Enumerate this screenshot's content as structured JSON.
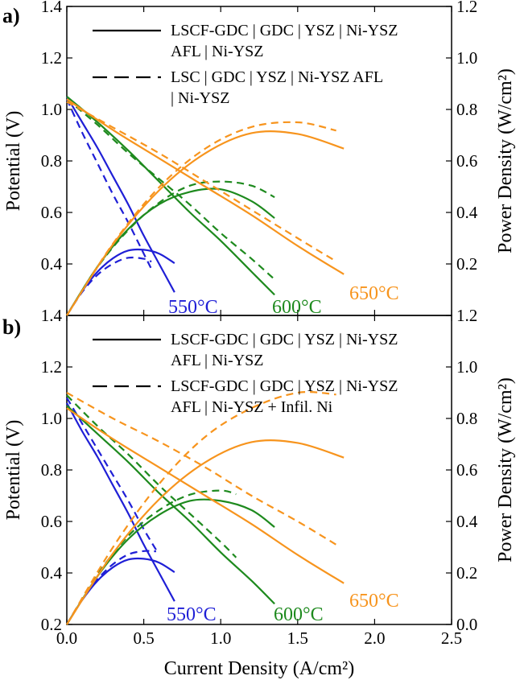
{
  "colors": {
    "550": "#1f1fd6",
    "600": "#1e8a1e",
    "650": "#f7941d"
  },
  "chart_data": [
    {
      "type": "line",
      "panel_label": "a)",
      "xlabel": "",
      "ylabel": "Potential (V)",
      "y2label": "Power Density (W/cm²)",
      "xlim": [
        0,
        2.5
      ],
      "ylim": [
        0.2,
        1.4
      ],
      "y2lim": [
        0.0,
        1.2
      ],
      "x_ticks": [
        0.0,
        0.5,
        1.0,
        1.5,
        2.0,
        2.5
      ],
      "y_ticks": [
        "1.4",
        "1.2",
        "1.0",
        "0.8",
        "0.6",
        "0.4"
      ],
      "y2_ticks": [
        "1.2",
        "1.0",
        "0.8",
        "0.6",
        "0.4",
        "0.2"
      ],
      "legend": [
        {
          "style": "solid",
          "lines": [
            "LSCF-GDC | GDC | YSZ | Ni-YSZ",
            "AFL | Ni-YSZ"
          ]
        },
        {
          "style": "dashed",
          "lines": [
            "LSC | GDC | YSZ | Ni-YSZ AFL",
            "| Ni-YSZ"
          ]
        }
      ],
      "temperature_labels": [
        "550°C",
        "600°C",
        "650°C"
      ],
      "series": [
        {
          "temp": "550",
          "style": "solid",
          "kind": "potential",
          "x": [
            0,
            0.1,
            0.2,
            0.3,
            0.4,
            0.5,
            0.6,
            0.7
          ],
          "y": [
            1.05,
            0.95,
            0.85,
            0.74,
            0.63,
            0.51,
            0.4,
            0.29
          ]
        },
        {
          "temp": "550",
          "style": "solid",
          "kind": "power",
          "x": [
            0,
            0.1,
            0.2,
            0.3,
            0.4,
            0.5,
            0.6,
            0.7
          ],
          "y": [
            0,
            0.095,
            0.17,
            0.222,
            0.252,
            0.255,
            0.24,
            0.203
          ]
        },
        {
          "temp": "550",
          "style": "dashed",
          "kind": "potential",
          "x": [
            0,
            0.1,
            0.2,
            0.3,
            0.4,
            0.5,
            0.55
          ],
          "y": [
            1.04,
            0.91,
            0.79,
            0.67,
            0.56,
            0.44,
            0.38
          ]
        },
        {
          "temp": "550",
          "style": "dashed",
          "kind": "power",
          "x": [
            0,
            0.1,
            0.2,
            0.3,
            0.4,
            0.5,
            0.55
          ],
          "y": [
            0,
            0.091,
            0.158,
            0.201,
            0.224,
            0.22,
            0.209
          ]
        },
        {
          "temp": "600",
          "style": "solid",
          "kind": "potential",
          "x": [
            0,
            0.2,
            0.4,
            0.6,
            0.8,
            1.0,
            1.2,
            1.35
          ],
          "y": [
            1.05,
            0.95,
            0.84,
            0.72,
            0.6,
            0.49,
            0.37,
            0.28
          ]
        },
        {
          "temp": "600",
          "style": "solid",
          "kind": "power",
          "x": [
            0,
            0.2,
            0.4,
            0.6,
            0.8,
            1.0,
            1.2,
            1.35
          ],
          "y": [
            0,
            0.19,
            0.336,
            0.432,
            0.48,
            0.49,
            0.444,
            0.378
          ]
        },
        {
          "temp": "600",
          "style": "dashed",
          "kind": "potential",
          "x": [
            0,
            0.2,
            0.4,
            0.6,
            0.8,
            1.0,
            1.2,
            1.35
          ],
          "y": [
            1.04,
            0.94,
            0.83,
            0.73,
            0.63,
            0.52,
            0.42,
            0.34
          ]
        },
        {
          "temp": "600",
          "style": "dashed",
          "kind": "power",
          "x": [
            0,
            0.2,
            0.4,
            0.6,
            0.8,
            1.0,
            1.2,
            1.35
          ],
          "y": [
            0,
            0.188,
            0.332,
            0.438,
            0.504,
            0.52,
            0.504,
            0.459
          ]
        },
        {
          "temp": "650",
          "style": "solid",
          "kind": "potential",
          "x": [
            0,
            0.3,
            0.6,
            0.9,
            1.2,
            1.5,
            1.8
          ],
          "y": [
            1.04,
            0.92,
            0.81,
            0.7,
            0.59,
            0.47,
            0.36
          ]
        },
        {
          "temp": "650",
          "style": "solid",
          "kind": "power",
          "x": [
            0,
            0.3,
            0.6,
            0.9,
            1.2,
            1.5,
            1.8
          ],
          "y": [
            0,
            0.276,
            0.486,
            0.63,
            0.708,
            0.705,
            0.648
          ]
        },
        {
          "temp": "650",
          "style": "dashed",
          "kind": "potential",
          "x": [
            0,
            0.3,
            0.6,
            0.9,
            1.2,
            1.5,
            1.75
          ],
          "y": [
            1.03,
            0.93,
            0.83,
            0.72,
            0.61,
            0.5,
            0.41
          ]
        },
        {
          "temp": "650",
          "style": "dashed",
          "kind": "power",
          "x": [
            0,
            0.3,
            0.6,
            0.9,
            1.2,
            1.5,
            1.75
          ],
          "y": [
            0,
            0.279,
            0.498,
            0.648,
            0.732,
            0.75,
            0.718
          ]
        }
      ]
    },
    {
      "type": "line",
      "panel_label": "b)",
      "xlabel": "Current Density (A/cm²)",
      "ylabel": "Potential (V)",
      "y2label": "Power Density (W/cm²)",
      "xlim": [
        0,
        2.5
      ],
      "ylim": [
        0.2,
        1.4
      ],
      "y2lim": [
        0.0,
        1.2
      ],
      "x_ticks": [
        "0.0",
        "0.5",
        "1.0",
        "1.5",
        "2.0",
        "2.5"
      ],
      "y_ticks": [
        "1.4",
        "1.2",
        "1.0",
        "0.8",
        "0.6",
        "0.4",
        "0.2"
      ],
      "y2_ticks": [
        "1.2",
        "1.0",
        "0.8",
        "0.6",
        "0.4",
        "0.2",
        "0.0"
      ],
      "legend": [
        {
          "style": "solid",
          "lines": [
            "LSCF-GDC | GDC | YSZ | Ni-YSZ",
            "AFL | Ni-YSZ"
          ]
        },
        {
          "style": "dashed",
          "lines": [
            "LSCF-GDC | GDC | YSZ | Ni-YSZ",
            "AFL | Ni-YSZ + Infil. Ni"
          ]
        }
      ],
      "temperature_labels": [
        "550°C",
        "600°C",
        "650°C"
      ],
      "series": [
        {
          "temp": "550",
          "style": "solid",
          "kind": "potential",
          "x": [
            0,
            0.1,
            0.2,
            0.3,
            0.4,
            0.5,
            0.6,
            0.7
          ],
          "y": [
            1.06,
            0.95,
            0.85,
            0.74,
            0.63,
            0.51,
            0.4,
            0.29
          ]
        },
        {
          "temp": "550",
          "style": "solid",
          "kind": "power",
          "x": [
            0,
            0.1,
            0.2,
            0.3,
            0.4,
            0.5,
            0.6,
            0.7
          ],
          "y": [
            0,
            0.095,
            0.17,
            0.222,
            0.252,
            0.255,
            0.24,
            0.203
          ]
        },
        {
          "temp": "550",
          "style": "dashed",
          "kind": "potential",
          "x": [
            0,
            0.1,
            0.2,
            0.3,
            0.4,
            0.5,
            0.58
          ],
          "y": [
            1.08,
            0.98,
            0.88,
            0.78,
            0.68,
            0.57,
            0.49
          ]
        },
        {
          "temp": "550",
          "style": "dashed",
          "kind": "power",
          "x": [
            0,
            0.1,
            0.2,
            0.3,
            0.4,
            0.5,
            0.58
          ],
          "y": [
            0,
            0.098,
            0.176,
            0.234,
            0.272,
            0.285,
            0.284
          ]
        },
        {
          "temp": "600",
          "style": "solid",
          "kind": "potential",
          "x": [
            0,
            0.2,
            0.4,
            0.6,
            0.8,
            1.0,
            1.2,
            1.35
          ],
          "y": [
            1.05,
            0.94,
            0.83,
            0.71,
            0.6,
            0.48,
            0.37,
            0.28
          ]
        },
        {
          "temp": "600",
          "style": "solid",
          "kind": "power",
          "x": [
            0,
            0.2,
            0.4,
            0.6,
            0.8,
            1.0,
            1.2,
            1.35
          ],
          "y": [
            0,
            0.188,
            0.332,
            0.426,
            0.48,
            0.48,
            0.444,
            0.378
          ]
        },
        {
          "temp": "600",
          "style": "dashed",
          "kind": "potential",
          "x": [
            0,
            0.2,
            0.4,
            0.6,
            0.8,
            1.0,
            1.1
          ],
          "y": [
            1.09,
            0.97,
            0.86,
            0.74,
            0.63,
            0.52,
            0.46
          ]
        },
        {
          "temp": "600",
          "style": "dashed",
          "kind": "power",
          "x": [
            0,
            0.2,
            0.4,
            0.6,
            0.8,
            1.0,
            1.1
          ],
          "y": [
            0,
            0.194,
            0.344,
            0.444,
            0.504,
            0.52,
            0.506
          ]
        },
        {
          "temp": "650",
          "style": "solid",
          "kind": "potential",
          "x": [
            0,
            0.3,
            0.6,
            0.9,
            1.2,
            1.5,
            1.8
          ],
          "y": [
            1.04,
            0.92,
            0.81,
            0.7,
            0.59,
            0.47,
            0.36
          ]
        },
        {
          "temp": "650",
          "style": "solid",
          "kind": "power",
          "x": [
            0,
            0.3,
            0.6,
            0.9,
            1.2,
            1.5,
            1.8
          ],
          "y": [
            0,
            0.276,
            0.486,
            0.63,
            0.708,
            0.705,
            0.648
          ]
        },
        {
          "temp": "650",
          "style": "dashed",
          "kind": "potential",
          "x": [
            0,
            0.3,
            0.6,
            0.9,
            1.2,
            1.5,
            1.75
          ],
          "y": [
            1.1,
            1.0,
            0.91,
            0.81,
            0.7,
            0.6,
            0.51
          ]
        },
        {
          "temp": "650",
          "style": "dashed",
          "kind": "power",
          "x": [
            0,
            0.3,
            0.6,
            0.9,
            1.2,
            1.5,
            1.75
          ],
          "y": [
            0,
            0.3,
            0.546,
            0.729,
            0.84,
            0.9,
            0.893
          ]
        }
      ]
    }
  ]
}
